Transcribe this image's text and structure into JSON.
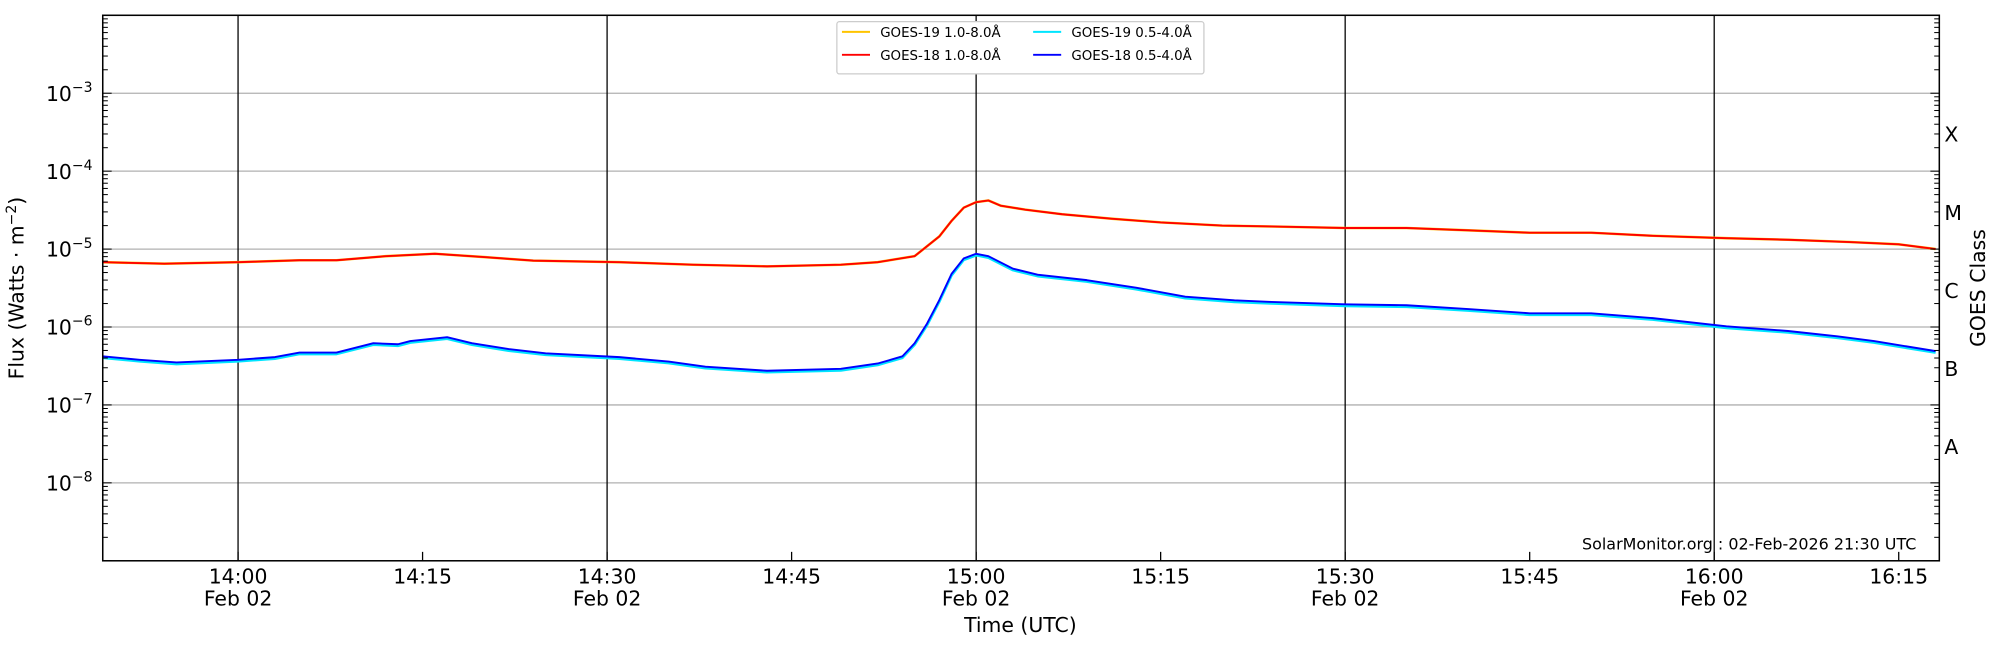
{
  "chart_data": {
    "type": "line",
    "title": "",
    "xlabel": "Time (UTC)",
    "ylabel": "Flux (Watts · m⁻²)",
    "ylabel_right": "GOES Class",
    "yscale": "log",
    "ylim_log10": [
      -9,
      -2
    ],
    "xlim": [
      "13:49",
      "16:18"
    ],
    "grid": true,
    "legend_placement": "top-center",
    "watermark": "SolarMonitor.org : 02-Feb-2026 21:30 UTC",
    "y_ticks": [
      {
        "exp": -3,
        "base": "10",
        "sup": "−3"
      },
      {
        "exp": -4,
        "base": "10",
        "sup": "−4"
      },
      {
        "exp": -5,
        "base": "10",
        "sup": "−5"
      },
      {
        "exp": -6,
        "base": "10",
        "sup": "−6"
      },
      {
        "exp": -7,
        "base": "10",
        "sup": "−7"
      },
      {
        "exp": -8,
        "base": "10",
        "sup": "−8"
      }
    ],
    "goes_classes": [
      {
        "label": "A",
        "log10": -7.53
      },
      {
        "label": "B",
        "log10": -6.53
      },
      {
        "label": "C",
        "log10": -5.53
      },
      {
        "label": "M",
        "log10": -4.53
      },
      {
        "label": "X",
        "log10": -3.52
      }
    ],
    "x_ticks": [
      {
        "t": "14:00",
        "label": "14:00",
        "date": "Feb 02"
      },
      {
        "t": "14:15",
        "label": "14:15",
        "date": ""
      },
      {
        "t": "14:30",
        "label": "14:30",
        "date": "Feb 02"
      },
      {
        "t": "14:45",
        "label": "14:45",
        "date": ""
      },
      {
        "t": "15:00",
        "label": "15:00",
        "date": "Feb 02"
      },
      {
        "t": "15:15",
        "label": "15:15",
        "date": ""
      },
      {
        "t": "15:30",
        "label": "15:30",
        "date": "Feb 02"
      },
      {
        "t": "15:45",
        "label": "15:45",
        "date": ""
      },
      {
        "t": "16:00",
        "label": "16:00",
        "date": "Feb 02"
      },
      {
        "t": "16:15",
        "label": "16:15",
        "date": ""
      }
    ],
    "series": [
      {
        "name": "GOES-19 1.0-8.0Å",
        "color": "#ffc400",
        "ref": 2,
        "offset": 0
      },
      {
        "name": "GOES-19 0.5-4.0Å",
        "color": "#00e5ff",
        "ref": 3,
        "offset": -0.02
      },
      {
        "name": "GOES-18 1.0-8.0Å",
        "color": "#ff0000",
        "x": [
          "13:49",
          "13:54",
          "14:00",
          "14:05",
          "14:08",
          "14:12",
          "14:16",
          "14:20",
          "14:24",
          "14:31",
          "14:37",
          "14:43",
          "14:49",
          "14:52",
          "14:55",
          "14:57",
          "14:58",
          "14:59",
          "15:00",
          "15:01",
          "15:02",
          "15:04",
          "15:07",
          "15:11",
          "15:15",
          "15:20",
          "15:24",
          "15:30",
          "15:35",
          "15:40",
          "15:45",
          "15:50",
          "15:55",
          "16:01",
          "16:06",
          "16:11",
          "16:15",
          "16:18"
        ],
        "values": [
          6.8e-06,
          6.5e-06,
          6.8e-06,
          7.2e-06,
          7.2e-06,
          8.1e-06,
          8.7e-06,
          7.9e-06,
          7.1e-06,
          6.8e-06,
          6.3e-06,
          6e-06,
          6.3e-06,
          6.8e-06,
          8.1e-06,
          1.45e-05,
          2.3e-05,
          3.4e-05,
          4e-05,
          4.2e-05,
          3.6e-05,
          3.2e-05,
          2.8e-05,
          2.45e-05,
          2.2e-05,
          2e-05,
          1.95e-05,
          1.86e-05,
          1.86e-05,
          1.74e-05,
          1.62e-05,
          1.62e-05,
          1.48e-05,
          1.38e-05,
          1.32e-05,
          1.23e-05,
          1.15e-05,
          1e-05
        ]
      },
      {
        "name": "GOES-18 0.5-4.0Å",
        "color": "#0000ff",
        "x": [
          "13:49",
          "13:52",
          "13:55",
          "14:00",
          "14:03",
          "14:05",
          "14:08",
          "14:11",
          "14:13",
          "14:14",
          "14:17",
          "14:19",
          "14:22",
          "14:25",
          "14:31",
          "14:35",
          "14:38",
          "14:43",
          "14:49",
          "14:52",
          "14:54",
          "14:55",
          "14:56",
          "14:57",
          "14:58",
          "14:59",
          "15:00",
          "15:01",
          "15:03",
          "15:05",
          "15:09",
          "15:13",
          "15:17",
          "15:21",
          "15:24",
          "15:30",
          "15:35",
          "15:40",
          "15:45",
          "15:50",
          "15:55",
          "16:01",
          "16:06",
          "16:10",
          "16:13",
          "16:18"
        ],
        "values": [
          4.2e-07,
          3.8e-07,
          3.5e-07,
          3.8e-07,
          4.1e-07,
          4.7e-07,
          4.7e-07,
          6.2e-07,
          6e-07,
          6.6e-07,
          7.4e-07,
          6.2e-07,
          5.2e-07,
          4.6e-07,
          4.1e-07,
          3.6e-07,
          3.1e-07,
          2.75e-07,
          2.9e-07,
          3.4e-07,
          4.2e-07,
          6.2e-07,
          1.1e-06,
          2.2e-06,
          4.8e-06,
          7.6e-06,
          8.7e-06,
          8.1e-06,
          5.6e-06,
          4.7e-06,
          4e-06,
          3.2e-06,
          2.45e-06,
          2.2e-06,
          2.1e-06,
          1.95e-06,
          1.9e-06,
          1.7e-06,
          1.5e-06,
          1.5e-06,
          1.3e-06,
          1.02e-06,
          8.9e-07,
          7.6e-07,
          6.6e-07,
          4.9e-07
        ]
      }
    ]
  }
}
